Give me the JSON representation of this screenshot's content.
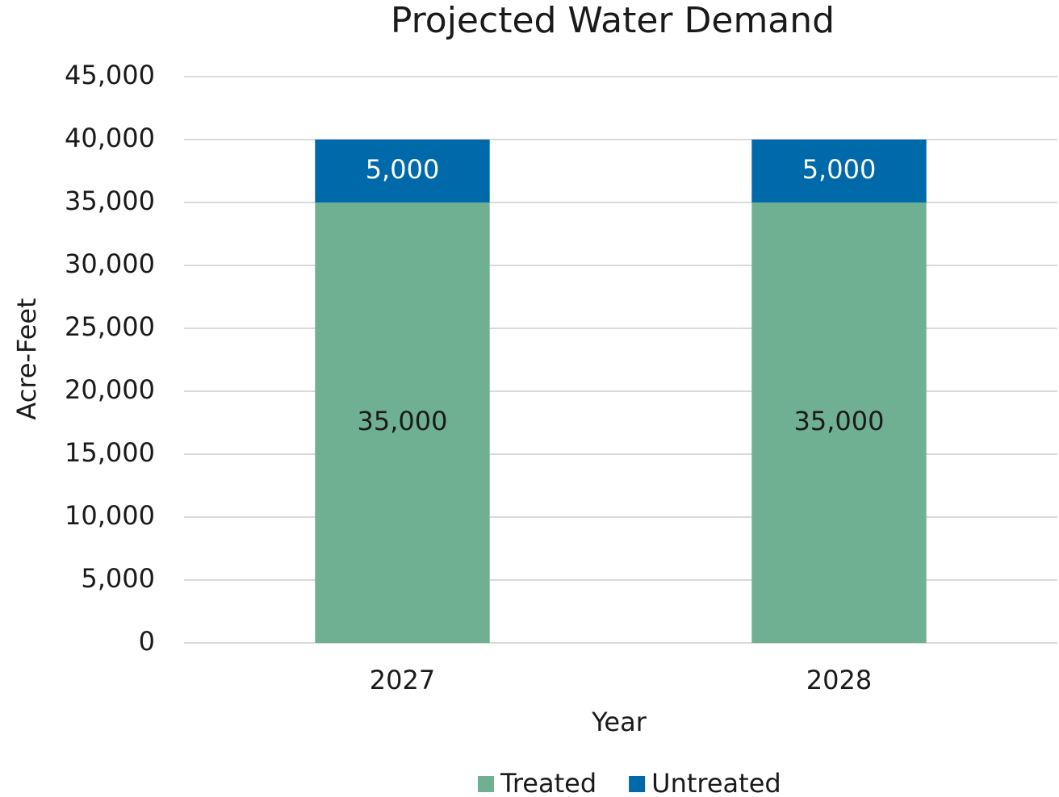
{
  "chart_data": {
    "type": "stacked_bar",
    "title": "Projected Water Demand",
    "x_label": "Year",
    "y_label": "Acre-Feet",
    "categories": [
      "2027",
      "2028"
    ],
    "series": [
      {
        "name": "Treated",
        "color": "#70b092",
        "values": [
          35000,
          35000
        ],
        "value_labels": [
          "35,000",
          "35,000"
        ],
        "label_color": "#1a1a1a"
      },
      {
        "name": "Untreated",
        "color": "#0069aa",
        "values": [
          5000,
          5000
        ],
        "value_labels": [
          "5,000",
          "5,000"
        ],
        "label_color": "#ffffff"
      }
    ],
    "ylim": [
      0,
      45000
    ],
    "yticks": [
      0,
      {
        "value": 5000,
        "label": "5,000"
      },
      {
        "value": 10000,
        "label": "10,000"
      },
      {
        "value": 15000,
        "label": "15,000"
      },
      {
        "value": 20000,
        "label": "20,000"
      },
      {
        "value": 25000,
        "label": "25,000"
      },
      {
        "value": 30000,
        "label": "30,000"
      },
      {
        "value": 35000,
        "label": "35,000"
      },
      {
        "value": 40000,
        "label": "40,000"
      },
      {
        "value": 45000,
        "label": "45,000"
      }
    ],
    "grid": true,
    "legend": "bottom"
  }
}
